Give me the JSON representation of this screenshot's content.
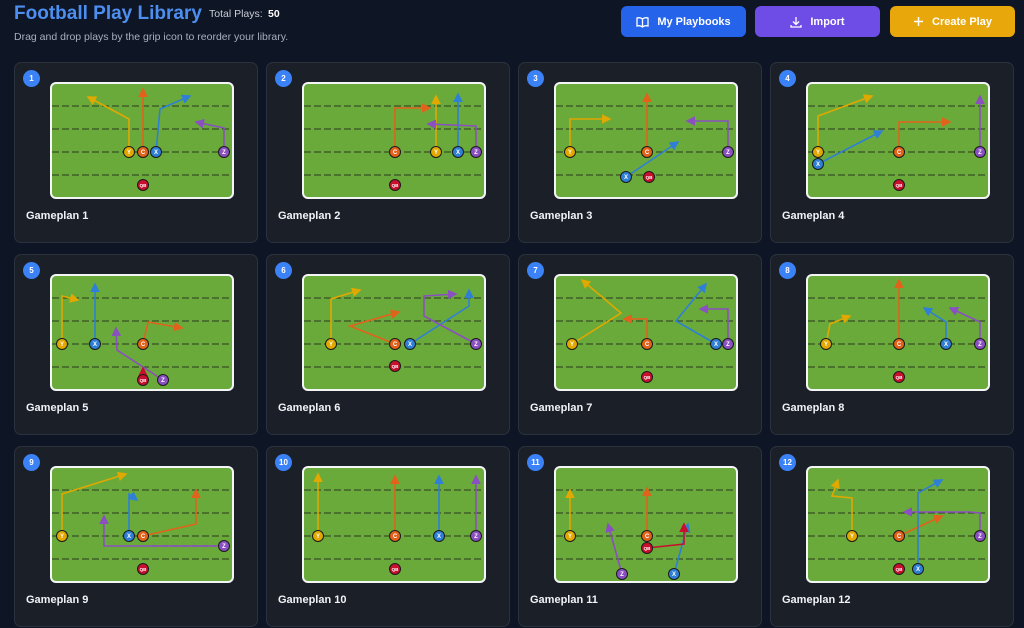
{
  "header": {
    "title": "Football Play Library",
    "total_label": "Total Plays:",
    "total_value": "50",
    "subtitle": "Drag and drop plays by the grip icon to reorder your library."
  },
  "buttons": {
    "my_playbooks": "My Playbooks",
    "import": "Import",
    "create_play": "Create Play"
  },
  "icons": {
    "my_playbooks": "book-open-icon",
    "import": "download-icon",
    "create_play": "plus-icon"
  },
  "colors": {
    "title": "#4d8ff0",
    "my_playbooks_button": "#2563eb",
    "import_button": "#6d4de6",
    "create_play_button": "#e8a70a",
    "badge": "#3b82f6",
    "field": "#6aaa3a",
    "player_Y": "#e0a800",
    "player_C": "#e2621b",
    "player_X": "#2f7fd6",
    "player_Z": "#8a4fc0",
    "player_QB": "#c8102e"
  },
  "player_labels": {
    "Y": "Y",
    "C": "C",
    "X": "X",
    "Z": "Z",
    "QB": "QB"
  },
  "plays": [
    {
      "number": "1",
      "name": "Gameplan 1"
    },
    {
      "number": "2",
      "name": "Gameplan 2"
    },
    {
      "number": "3",
      "name": "Gameplan 3"
    },
    {
      "number": "4",
      "name": "Gameplan 4"
    },
    {
      "number": "5",
      "name": "Gameplan 5"
    },
    {
      "number": "6",
      "name": "Gameplan 6"
    },
    {
      "number": "7",
      "name": "Gameplan 7"
    },
    {
      "number": "8",
      "name": "Gameplan 8"
    },
    {
      "number": "9",
      "name": "Gameplan 9"
    },
    {
      "number": "10",
      "name": "Gameplan 10"
    },
    {
      "number": "11",
      "name": "Gameplan 11"
    },
    {
      "number": "12",
      "name": "Gameplan 12"
    }
  ]
}
